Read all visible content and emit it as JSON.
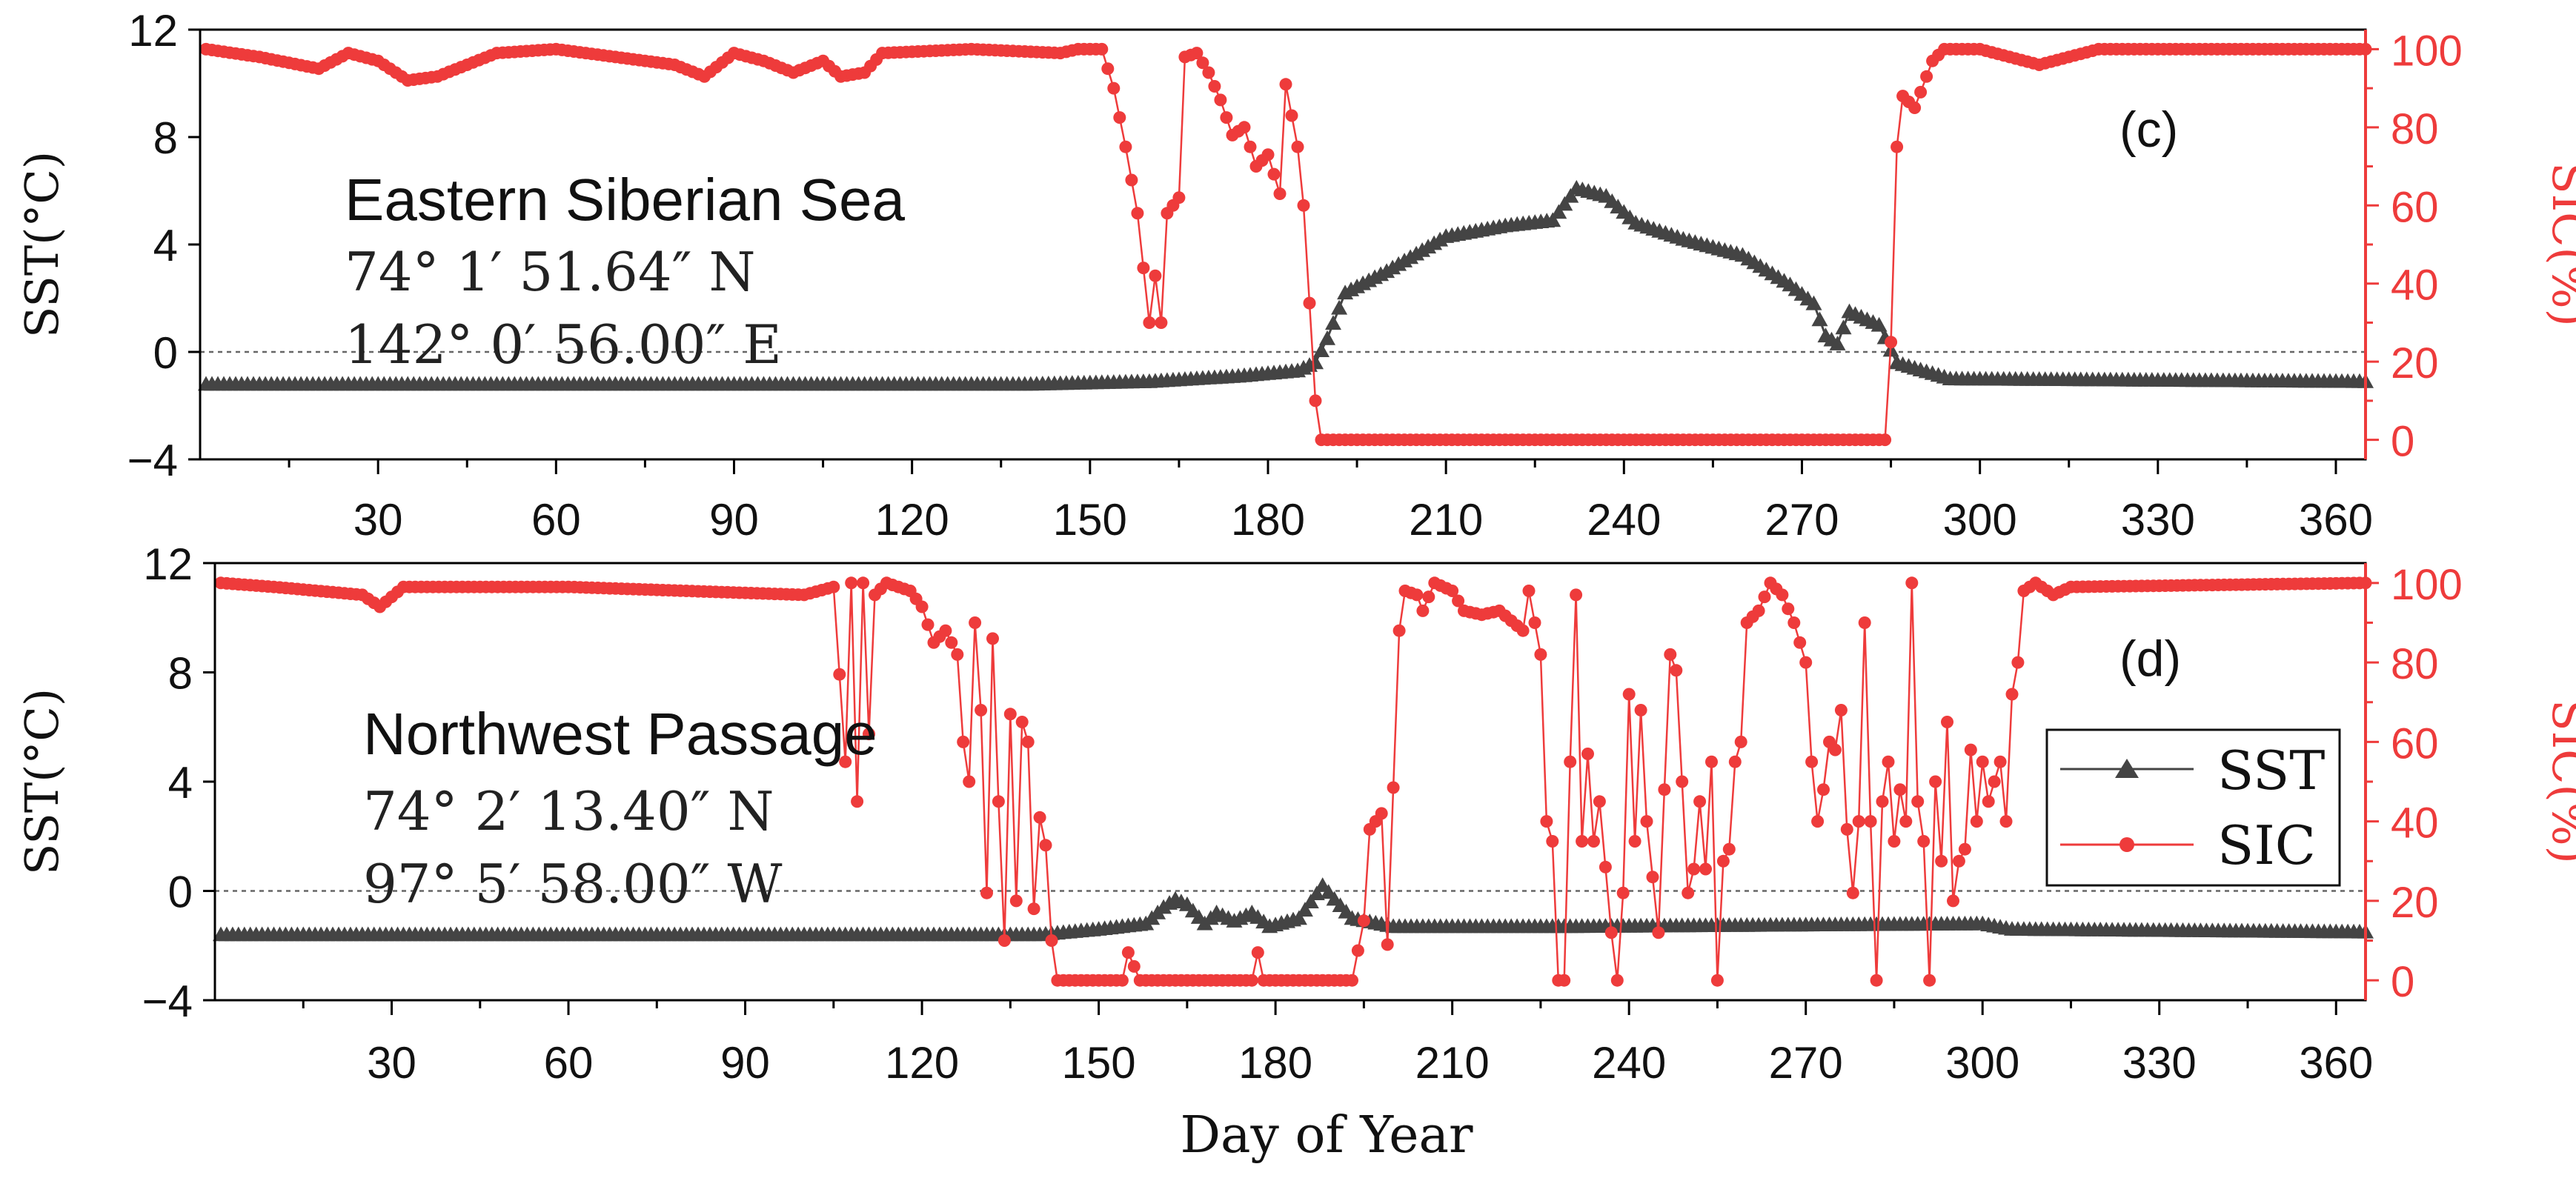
{
  "figure": {
    "xlabel": "Day of Year",
    "colors": {
      "sst": "#444444",
      "sic": "#ee3b3b",
      "frame": "#000000",
      "zero_line": "#666666"
    }
  },
  "legend": {
    "sst_label": "SST",
    "sic_label": "SIC"
  },
  "chart_data": [
    {
      "type": "line",
      "panel_label": "(c)",
      "title": "Eastern Siberian Sea",
      "annotations": [
        "74° 1′ 51.64″ N",
        "142° 0′ 56.00″ E"
      ],
      "xlabel": "Day of Year",
      "ylabel_left": "SST(°C)",
      "ylabel_right": "SIC(%)",
      "xlim": [
        0,
        365
      ],
      "ylim_left": [
        -4,
        12
      ],
      "ylim_right": [
        -5,
        105
      ],
      "x_ticks": [
        30,
        60,
        90,
        120,
        150,
        180,
        210,
        240,
        270,
        300,
        330,
        360
      ],
      "y_ticks_left": [
        -4,
        0,
        4,
        8,
        12
      ],
      "y_ticks_right": [
        0,
        20,
        40,
        60,
        80,
        100
      ],
      "series": [
        {
          "name": "SST",
          "axis": "left",
          "marker": "triangle",
          "keyframes": [
            [
              1,
              -1.2
            ],
            [
              140,
              -1.2
            ],
            [
              160,
              -1.1
            ],
            [
              175,
              -0.9
            ],
            [
              185,
              -0.7
            ],
            [
              188,
              -0.4
            ],
            [
              190,
              0.5
            ],
            [
              193,
              2.2
            ],
            [
              200,
              3
            ],
            [
              210,
              4.3
            ],
            [
              220,
              4.7
            ],
            [
              228,
              4.9
            ],
            [
              232,
              6.1
            ],
            [
              237,
              5.8
            ],
            [
              242,
              4.8
            ],
            [
              250,
              4.2
            ],
            [
              260,
              3.6
            ],
            [
              268,
              2.5
            ],
            [
              272,
              1.8
            ],
            [
              274,
              0.6
            ],
            [
              276,
              0.3
            ],
            [
              278,
              1.5
            ],
            [
              283,
              1
            ],
            [
              286,
              -0.4
            ],
            [
              295,
              -1
            ],
            [
              365,
              -1.1
            ]
          ]
        },
        {
          "name": "SIC",
          "axis": "right",
          "marker": "circle",
          "keyframes": [
            [
              1,
              100
            ],
            [
              10,
              98
            ],
            [
              20,
              95
            ],
            [
              25,
              99
            ],
            [
              30,
              97
            ],
            [
              35,
              92
            ],
            [
              40,
              93
            ],
            [
              45,
              96
            ],
            [
              50,
              99
            ],
            [
              60,
              100
            ],
            [
              70,
              98
            ],
            [
              80,
              96
            ],
            [
              85,
              93
            ],
            [
              90,
              99
            ],
            [
              95,
              97
            ],
            [
              100,
              94
            ],
            [
              105,
              97
            ],
            [
              108,
              93
            ],
            [
              112,
              94
            ],
            [
              115,
              99
            ],
            [
              130,
              100
            ],
            [
              145,
              99
            ],
            [
              148,
              100
            ],
            [
              152,
              100
            ],
            [
              154,
              90
            ],
            [
              156,
              75
            ],
            [
              158,
              58
            ],
            [
              160,
              30
            ],
            [
              161,
              42
            ],
            [
              162,
              30
            ],
            [
              163,
              58
            ],
            [
              165,
              62
            ],
            [
              166,
              98
            ],
            [
              168,
              99
            ],
            [
              170,
              94
            ],
            [
              172,
              87
            ],
            [
              174,
              78
            ],
            [
              176,
              80
            ],
            [
              178,
              70
            ],
            [
              180,
              73
            ],
            [
              182,
              63
            ],
            [
              183,
              91
            ],
            [
              185,
              75
            ],
            [
              186,
              60
            ],
            [
              188,
              10
            ],
            [
              189,
              0
            ],
            [
              284,
              0
            ],
            [
              285,
              25
            ],
            [
              286,
              75
            ],
            [
              287,
              88
            ],
            [
              289,
              85
            ],
            [
              292,
              97
            ],
            [
              294,
              100
            ],
            [
              300,
              100
            ],
            [
              310,
              96
            ],
            [
              320,
              100
            ],
            [
              365,
              100
            ]
          ]
        }
      ]
    },
    {
      "type": "line",
      "panel_label": "(d)",
      "title": "Northwest Passage",
      "annotations": [
        "74° 2′ 13.40″ N",
        "97° 5′ 58.00″ W"
      ],
      "xlabel": "Day of Year",
      "ylabel_left": "SST(°C)",
      "ylabel_right": "SIC(%)",
      "xlim": [
        0,
        365
      ],
      "ylim_left": [
        -4,
        12
      ],
      "ylim_right": [
        -5,
        105
      ],
      "x_ticks": [
        30,
        60,
        90,
        120,
        150,
        180,
        210,
        240,
        270,
        300,
        330,
        360
      ],
      "y_ticks_left": [
        -4,
        0,
        4,
        8,
        12
      ],
      "y_ticks_right": [
        0,
        20,
        40,
        60,
        80,
        100
      ],
      "series": [
        {
          "name": "SST",
          "axis": "left",
          "marker": "triangle",
          "keyframes": [
            [
              1,
              -1.6
            ],
            [
              140,
              -1.6
            ],
            [
              150,
              -1.4
            ],
            [
              158,
              -1.2
            ],
            [
              161,
              -0.6
            ],
            [
              163,
              -0.3
            ],
            [
              165,
              -0.5
            ],
            [
              168,
              -1.2
            ],
            [
              170,
              -0.8
            ],
            [
              173,
              -1.1
            ],
            [
              176,
              -0.8
            ],
            [
              179,
              -1.3
            ],
            [
              184,
              -1
            ],
            [
              188,
              0.2
            ],
            [
              190,
              -0.3
            ],
            [
              193,
              -1
            ],
            [
              200,
              -1.3
            ],
            [
              230,
              -1.3
            ],
            [
              300,
              -1.2
            ],
            [
              305,
              -1.4
            ],
            [
              365,
              -1.5
            ]
          ]
        },
        {
          "name": "SIC",
          "axis": "right",
          "marker": "circle",
          "keyframes": [
            [
              1,
              100
            ],
            [
              10,
              99
            ],
            [
              25,
              97
            ],
            [
              28,
              94
            ],
            [
              32,
              99
            ],
            [
              60,
              99
            ],
            [
              100,
              97
            ],
            [
              105,
              99
            ],
            [
              107,
              55
            ],
            [
              108,
              100
            ],
            [
              109,
              45
            ],
            [
              110,
              100
            ],
            [
              111,
              62
            ],
            [
              112,
              97
            ],
            [
              114,
              100
            ],
            [
              118,
              98
            ],
            [
              120,
              94
            ],
            [
              122,
              85
            ],
            [
              124,
              88
            ],
            [
              126,
              82
            ],
            [
              127,
              60
            ],
            [
              128,
              50
            ],
            [
              129,
              90
            ],
            [
              130,
              68
            ],
            [
              131,
              22
            ],
            [
              132,
              86
            ],
            [
              133,
              45
            ],
            [
              134,
              10
            ],
            [
              135,
              67
            ],
            [
              136,
              20
            ],
            [
              137,
              65
            ],
            [
              138,
              60
            ],
            [
              139,
              18
            ],
            [
              140,
              41
            ],
            [
              141,
              34
            ],
            [
              142,
              10
            ],
            [
              143,
              0
            ],
            [
              154,
              0
            ],
            [
              155,
              7
            ],
            [
              157,
              0
            ],
            [
              176,
              0
            ],
            [
              177,
              7
            ],
            [
              178,
              0
            ],
            [
              193,
              0
            ],
            [
              195,
              15
            ],
            [
              196,
              38
            ],
            [
              198,
              42
            ],
            [
              199,
              9
            ],
            [
              201,
              88
            ],
            [
              202,
              98
            ],
            [
              204,
              97
            ],
            [
              205,
              93
            ],
            [
              207,
              100
            ],
            [
              210,
              98
            ],
            [
              212,
              93
            ],
            [
              215,
              92
            ],
            [
              218,
              93
            ],
            [
              222,
              88
            ],
            [
              223,
              98
            ],
            [
              225,
              82
            ],
            [
              226,
              40
            ],
            [
              227,
              35
            ],
            [
              228,
              0
            ],
            [
              229,
              0
            ],
            [
              230,
              55
            ],
            [
              231,
              97
            ],
            [
              232,
              35
            ],
            [
              233,
              57
            ],
            [
              234,
              35
            ],
            [
              235,
              45
            ],
            [
              237,
              12
            ],
            [
              238,
              0
            ],
            [
              239,
              22
            ],
            [
              240,
              72
            ],
            [
              241,
              35
            ],
            [
              242,
              68
            ],
            [
              243,
              40
            ],
            [
              245,
              12
            ],
            [
              246,
              48
            ],
            [
              247,
              82
            ],
            [
              248,
              78
            ],
            [
              250,
              22
            ],
            [
              251,
              28
            ],
            [
              252,
              45
            ],
            [
              253,
              28
            ],
            [
              254,
              55
            ],
            [
              255,
              0
            ],
            [
              256,
              30
            ],
            [
              257,
              33
            ],
            [
              258,
              55
            ],
            [
              259,
              60
            ],
            [
              260,
              90
            ],
            [
              262,
              93
            ],
            [
              264,
              100
            ],
            [
              266,
              97
            ],
            [
              268,
              90
            ],
            [
              270,
              80
            ],
            [
              271,
              55
            ],
            [
              272,
              40
            ],
            [
              273,
              48
            ],
            [
              274,
              60
            ],
            [
              275,
              58
            ],
            [
              276,
              68
            ],
            [
              277,
              38
            ],
            [
              278,
              22
            ],
            [
              279,
              40
            ],
            [
              280,
              90
            ],
            [
              281,
              40
            ],
            [
              282,
              0
            ],
            [
              283,
              45
            ],
            [
              284,
              55
            ],
            [
              285,
              35
            ],
            [
              286,
              48
            ],
            [
              287,
              40
            ],
            [
              288,
              100
            ],
            [
              289,
              45
            ],
            [
              290,
              35
            ],
            [
              291,
              0
            ],
            [
              292,
              50
            ],
            [
              293,
              30
            ],
            [
              294,
              65
            ],
            [
              295,
              20
            ],
            [
              296,
              30
            ],
            [
              297,
              33
            ],
            [
              298,
              58
            ],
            [
              299,
              40
            ],
            [
              300,
              55
            ],
            [
              301,
              45
            ],
            [
              302,
              50
            ],
            [
              303,
              55
            ],
            [
              304,
              40
            ],
            [
              305,
              72
            ],
            [
              306,
              80
            ],
            [
              307,
              98
            ],
            [
              309,
              100
            ],
            [
              312,
              97
            ],
            [
              315,
              99
            ],
            [
              365,
              100
            ]
          ]
        }
      ]
    }
  ]
}
